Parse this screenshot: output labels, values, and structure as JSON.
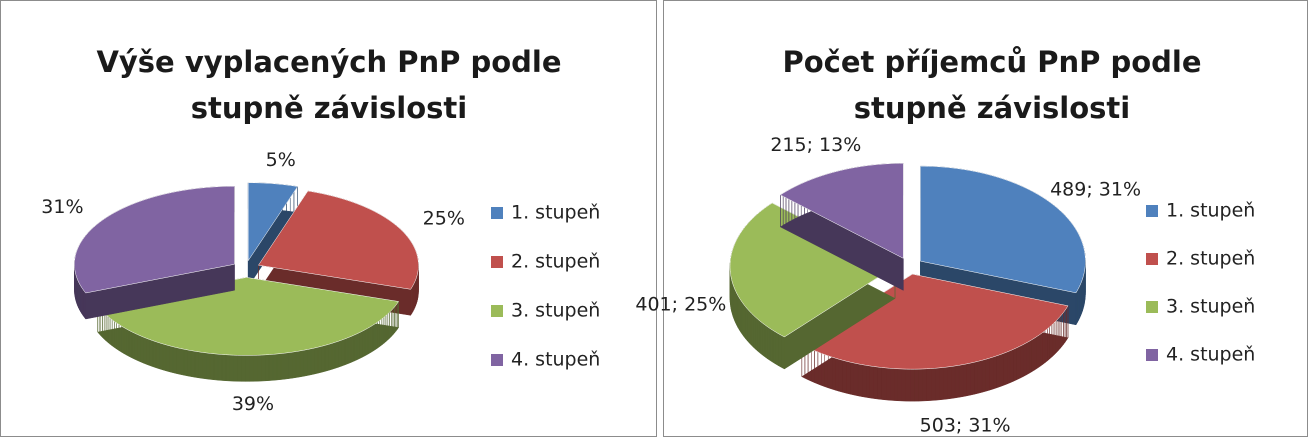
{
  "chart_data": [
    {
      "type": "pie",
      "title": "Výše vyplacených PnP podle stupně závislosti",
      "categories": [
        "1. stupeň",
        "2. stupeň",
        "3. stupeň",
        "4. stupeň"
      ],
      "values": [
        5,
        25,
        39,
        31
      ],
      "value_labels": [
        "5%",
        "25%",
        "39%",
        "31%"
      ],
      "colors": [
        "#4f81bd",
        "#c0504d",
        "#9bbb59",
        "#8064a2"
      ],
      "legend": "right"
    },
    {
      "type": "pie",
      "title": "Počet příjemců PnP podle stupně závislosti",
      "categories": [
        "1. stupeň",
        "2. stupeň",
        "3. stupeň",
        "4. stupeň"
      ],
      "values": [
        489,
        503,
        401,
        215
      ],
      "value_labels": [
        "489; 31%",
        "503; 31%",
        "401; 25%",
        "215; 13%"
      ],
      "colors": [
        "#4f81bd",
        "#c0504d",
        "#9bbb59",
        "#8064a2"
      ],
      "legend": "right"
    }
  ]
}
